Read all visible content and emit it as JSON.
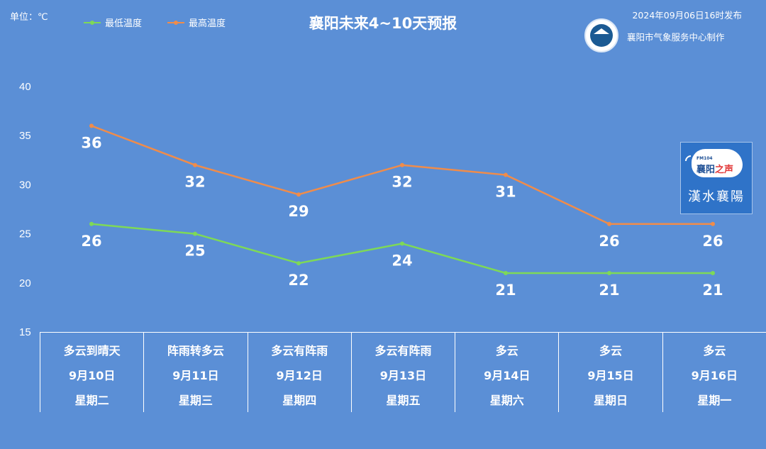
{
  "header": {
    "unit": "单位：℃",
    "title": "襄阳未来4~10天预报",
    "publish_time": "2024年09月06日16时发布",
    "publisher": "襄阳市气象服务中心制作"
  },
  "radio_card": {
    "fm": "FM104",
    "station_main": "襄阳",
    "station_accent": "之声",
    "brush_text": "漢水襄陽"
  },
  "colors": {
    "background": "#5b8fd6",
    "low_series": "#7ed957",
    "high_series": "#f08c4a"
  },
  "days": [
    {
      "weather": "多云到晴天",
      "date": "9月10日",
      "weekday": "星期二"
    },
    {
      "weather": "阵雨转多云",
      "date": "9月11日",
      "weekday": "星期三"
    },
    {
      "weather": "多云有阵雨",
      "date": "9月12日",
      "weekday": "星期四"
    },
    {
      "weather": "多云有阵雨",
      "date": "9月13日",
      "weekday": "星期五"
    },
    {
      "weather": "多云",
      "date": "9月14日",
      "weekday": "星期六"
    },
    {
      "weather": "多云",
      "date": "9月15日",
      "weekday": "星期日"
    },
    {
      "weather": "多云",
      "date": "9月16日",
      "weekday": "星期一"
    }
  ],
  "chart_data": {
    "type": "line",
    "title": "襄阳未来4~10天预报",
    "categories": [
      "9月10日",
      "9月11日",
      "9月12日",
      "9月13日",
      "9月14日",
      "9月15日",
      "9月16日"
    ],
    "series": [
      {
        "name": "最低温度",
        "values": [
          26,
          25,
          22,
          24,
          21,
          21,
          21
        ]
      },
      {
        "name": "最高温度",
        "values": [
          36,
          32,
          29,
          32,
          31,
          26,
          26
        ]
      }
    ],
    "ylim": [
      15,
      40
    ],
    "yticks": [
      15,
      20,
      25,
      30,
      35,
      40
    ],
    "legend": "top-left",
    "grid": false
  }
}
